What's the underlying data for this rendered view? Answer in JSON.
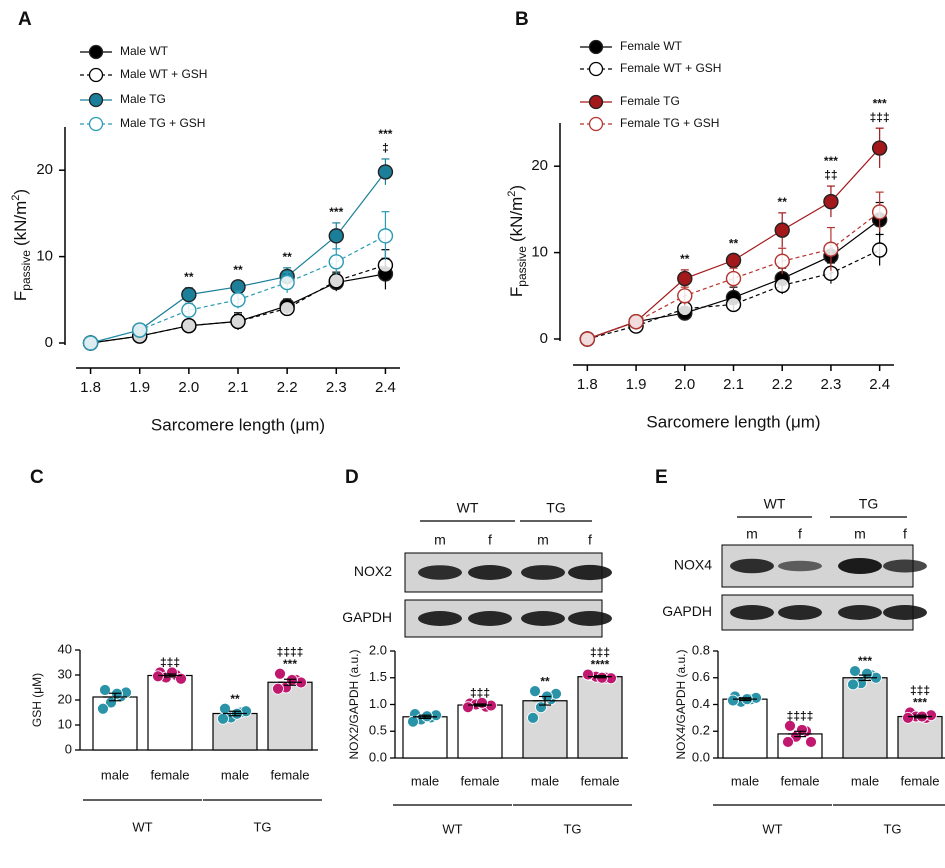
{
  "chart_data": [
    {
      "type": "line",
      "panel": "A",
      "x": [
        1.8,
        1.9,
        2.0,
        2.1,
        2.2,
        2.3,
        2.4
      ],
      "xlim": [
        1.75,
        2.45
      ],
      "xticks": [
        1.8,
        1.9,
        {
          "value": 2.0,
          "label": "2.0"
        },
        2.1,
        2.2,
        2.3,
        2.4
      ],
      "ylim": [
        0,
        25
      ],
      "yticks": [
        0,
        10,
        20
      ],
      "xlabel": "Sarcomere length (μm)",
      "ylabel": [
        "F",
        "passive",
        "(kN/m",
        "2",
        ")"
      ],
      "series": [
        {
          "name": "Male WT",
          "color": "#000000",
          "marker": "filled",
          "line": "solid",
          "values": [
            0,
            0.8,
            2,
            2.5,
            4.3,
            7,
            8
          ],
          "errors": [
            0.3,
            0.5,
            0.5,
            1,
            0.8,
            1,
            1.8
          ]
        },
        {
          "name": "Male WT + GSH",
          "color": "#000000",
          "marker": "open",
          "line": "dashed",
          "values": [
            0,
            0.8,
            2,
            2.5,
            4,
            7.2,
            9
          ],
          "errors": [
            0.3,
            0.5,
            0.5,
            0.8,
            0.8,
            1,
            1.8
          ]
        },
        {
          "name": "Male TG",
          "color": "#1b7f99",
          "marker": "filled",
          "line": "solid",
          "values": [
            0,
            1.5,
            5.6,
            6.5,
            7.7,
            12.4,
            19.8
          ],
          "errors": [
            0.3,
            0.5,
            0.8,
            0.7,
            1,
            1.5,
            1.5
          ]
        },
        {
          "name": "Male TG + GSH",
          "color": "#2a9ab5",
          "marker": "open",
          "line": "dashed",
          "values": [
            0,
            1.5,
            3.8,
            5,
            7,
            9.4,
            12.4
          ],
          "errors": [
            0.3,
            0.5,
            0.8,
            1,
            1.2,
            1.5,
            2.8
          ]
        }
      ],
      "annotations": [
        [],
        [],
        [
          "**"
        ],
        [
          "**"
        ],
        [
          "**"
        ],
        [
          "***"
        ],
        [
          "***",
          "‡"
        ]
      ]
    },
    {
      "type": "line",
      "panel": "B",
      "x": [
        1.8,
        1.9,
        2.0,
        2.1,
        2.2,
        2.3,
        2.4
      ],
      "xlim": [
        1.75,
        2.45
      ],
      "xticks": [
        1.8,
        1.9,
        {
          "value": 2.0,
          "label": "2.0"
        },
        2.1,
        2.2,
        2.3,
        2.4
      ],
      "ylim": [
        0,
        25
      ],
      "yticks": [
        0,
        10,
        20
      ],
      "xlabel": "Sarcomere length (μm)",
      "ylabel": [
        "F",
        "passive",
        "(kN/m",
        "2",
        ")"
      ],
      "series": [
        {
          "name": "Female WT",
          "color": "#000000",
          "marker": "filled",
          "line": "solid",
          "values": [
            0,
            2,
            3,
            4.8,
            7,
            9.6,
            13.8
          ],
          "errors": [
            0.3,
            0.5,
            0.7,
            1.2,
            1.2,
            1.5,
            2
          ]
        },
        {
          "name": "Female WT + GSH",
          "color": "#000000",
          "marker": "open",
          "line": "dashed",
          "values": [
            0,
            1.5,
            3.5,
            4,
            6.2,
            7.6,
            10.3
          ],
          "errors": [
            0.3,
            0.5,
            0.8,
            0.8,
            1,
            1.2,
            1.8
          ]
        },
        {
          "name": "Female TG",
          "color": "#a3181b",
          "marker": "filled",
          "line": "solid",
          "values": [
            0,
            2,
            7,
            9.1,
            12.6,
            15.9,
            22.1
          ],
          "errors": [
            0.3,
            0.5,
            1,
            0.7,
            2,
            1.8,
            2.3
          ]
        },
        {
          "name": "Female TG + GSH",
          "color": "#b5342f",
          "marker": "open",
          "line": "dashed",
          "values": [
            0,
            2,
            5,
            7,
            9,
            10.4,
            14.7
          ],
          "errors": [
            0.3,
            0.5,
            1,
            1.2,
            1.5,
            2.5,
            2.3
          ]
        }
      ],
      "annotations": [
        [],
        [],
        [
          "**"
        ],
        [
          "**"
        ],
        [
          "**"
        ],
        [
          "***",
          "‡‡"
        ],
        [
          "***",
          "‡‡‡"
        ]
      ]
    },
    {
      "type": "bar",
      "panel": "C",
      "categories": [
        "male",
        "female",
        "male",
        "female"
      ],
      "groups": [
        "WT",
        "TG"
      ],
      "ylabel": "GSH (μM)",
      "ylim": [
        0,
        40
      ],
      "yticks": [
        0,
        10,
        20,
        30,
        40
      ],
      "values": [
        21.2,
        29.8,
        14.6,
        27.1
      ],
      "errors": [
        1.5,
        0.6,
        0.9,
        1.2
      ],
      "colors": [
        "#ffffff",
        "#ffffff",
        "#d9d9d9",
        "#d9d9d9"
      ],
      "point_colors": [
        "#2a93a8",
        "#c0186f",
        "#2a93a8",
        "#c0186f"
      ],
      "points": [
        [
          24,
          21.5,
          19,
          23,
          16.5,
          22.5
        ],
        [
          31,
          30,
          29,
          28.5,
          29.5,
          31
        ],
        [
          16.5,
          15,
          13,
          15.5,
          12.5,
          14.5
        ],
        [
          30.5,
          28,
          25,
          27,
          24.5,
          28
        ]
      ],
      "annotations": [
        [],
        [
          "‡‡‡"
        ],
        [
          "**"
        ],
        [
          "‡‡‡‡",
          "***"
        ]
      ]
    },
    {
      "type": "bar",
      "panel": "D",
      "categories": [
        "male",
        "female",
        "male",
        "female"
      ],
      "groups": [
        "WT",
        "TG"
      ],
      "ylabel": "NOX2/GAPDH (a.u.)",
      "ylim": [
        0,
        2
      ],
      "yticks": [
        {
          "value": 0,
          "label": "0.0"
        },
        0.5,
        {
          "value": 1,
          "label": "1.0"
        },
        1.5,
        {
          "value": 2,
          "label": "2.0"
        }
      ],
      "values": [
        0.77,
        0.99,
        1.07,
        1.52
      ],
      "errors": [
        0.03,
        0.02,
        0.08,
        0.02
      ],
      "colors": [
        "#ffffff",
        "#ffffff",
        "#d9d9d9",
        "#d9d9d9"
      ],
      "point_colors": [
        "#2a93a8",
        "#c0186f",
        "#2a93a8",
        "#c0186f"
      ],
      "points": [
        [
          0.82,
          0.76,
          0.72,
          0.8,
          0.68,
          0.78
        ],
        [
          1.02,
          0.96,
          1.0,
          0.98,
          0.95,
          1.03
        ],
        [
          1.25,
          1.1,
          0.95,
          1.2,
          0.75,
          1.15
        ],
        [
          1.55,
          1.5,
          1.52,
          1.49,
          1.56,
          1.5
        ]
      ],
      "annotations": [
        [],
        [
          "‡‡‡"
        ],
        [
          "**"
        ],
        [
          "‡‡‡",
          "****"
        ]
      ],
      "blot": {
        "groups": [
          "WT",
          "TG"
        ],
        "lanes": [
          "m",
          "f",
          "m",
          "f"
        ],
        "rows": [
          "NOX2",
          "GAPDH"
        ]
      }
    },
    {
      "type": "bar",
      "panel": "E",
      "categories": [
        "male",
        "female",
        "male",
        "female"
      ],
      "groups": [
        "WT",
        "TG"
      ],
      "ylabel": "NOX4/GAPDH (a.u.)",
      "ylim": [
        0,
        0.8
      ],
      "yticks": [
        {
          "value": 0,
          "label": "0.0"
        },
        0.2,
        0.4,
        0.6,
        0.8
      ],
      "values": [
        0.44,
        0.18,
        0.6,
        0.31
      ],
      "errors": [
        0.01,
        0.02,
        0.02,
        0.01
      ],
      "colors": [
        "#ffffff",
        "#ffffff",
        "#d9d9d9",
        "#d9d9d9"
      ],
      "point_colors": [
        "#2a93a8",
        "#c0186f",
        "#2a93a8",
        "#c0186f"
      ],
      "points": [
        [
          0.46,
          0.44,
          0.42,
          0.45,
          0.43,
          0.44
        ],
        [
          0.24,
          0.2,
          0.16,
          0.12,
          0.12,
          0.21
        ],
        [
          0.65,
          0.62,
          0.56,
          0.6,
          0.55,
          0.63
        ],
        [
          0.34,
          0.3,
          0.31,
          0.32,
          0.3,
          0.31
        ]
      ],
      "annotations": [
        [],
        [
          "‡‡‡‡"
        ],
        [
          "***"
        ],
        [
          "‡‡‡",
          "***"
        ]
      ],
      "blot": {
        "groups": [
          "WT",
          "TG"
        ],
        "lanes": [
          "m",
          "f",
          "m",
          "f"
        ],
        "rows": [
          "NOX4",
          "GAPDH"
        ]
      }
    }
  ]
}
